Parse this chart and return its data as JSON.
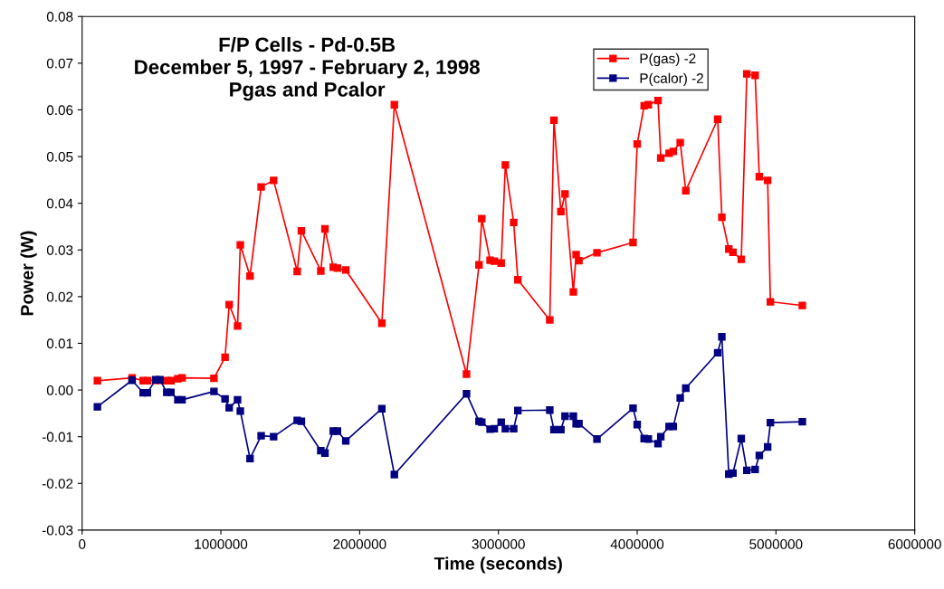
{
  "chart_data": {
    "type": "line",
    "title": "F/P Cells - Pd-0.5B\nDecember 5, 1997 - February 2, 1998\nPgas and Pcalor",
    "xlabel": "Time (seconds)",
    "ylabel": "Power (W)",
    "x": [
      110000,
      360000,
      440000,
      470000,
      530000,
      560000,
      610000,
      640000,
      690000,
      720000,
      950000,
      1030000,
      1060000,
      1120000,
      1140000,
      1210000,
      1290000,
      1380000,
      1550000,
      1580000,
      1720000,
      1750000,
      1810000,
      1840000,
      1900000,
      2160000,
      2250000,
      2770000,
      2860000,
      2880000,
      2940000,
      2970000,
      3020000,
      3050000,
      3110000,
      3140000,
      3370000,
      3400000,
      3450000,
      3480000,
      3540000,
      3560000,
      3580000,
      3710000,
      3970000,
      4000000,
      4050000,
      4080000,
      4150000,
      4170000,
      4230000,
      4260000,
      4310000,
      4350000,
      4580000,
      4610000,
      4660000,
      4690000,
      4750000,
      4790000,
      4850000,
      4880000,
      4940000,
      4960000,
      5190000
    ],
    "series": [
      {
        "name": "P(gas) -2",
        "color": "#ff0000",
        "values": [
          0.002,
          0.0026,
          0.002,
          0.002,
          0.0021,
          0.0021,
          0.002,
          0.002,
          0.0024,
          0.0026,
          0.0025,
          0.007,
          0.0183,
          0.0137,
          0.0311,
          0.0244,
          0.0435,
          0.0449,
          0.0254,
          0.0341,
          0.0255,
          0.0345,
          0.0263,
          0.0261,
          0.0257,
          0.0143,
          0.0611,
          0.0034,
          0.0268,
          0.0367,
          0.0278,
          0.0276,
          0.0272,
          0.0482,
          0.0359,
          0.0236,
          0.015,
          0.0578,
          0.0382,
          0.042,
          0.021,
          0.029,
          0.0277,
          0.0294,
          0.0316,
          0.0527,
          0.0609,
          0.0611,
          0.062,
          0.0497,
          0.0507,
          0.0511,
          0.053,
          0.0427,
          0.058,
          0.037,
          0.0302,
          0.0295,
          0.028,
          0.0677,
          0.0674,
          0.0457,
          0.0449,
          0.0189,
          0.0181
        ]
      },
      {
        "name": "P(calor) -2",
        "color": "#000080",
        "values": [
          -0.0036,
          0.0021,
          -0.0006,
          -0.0006,
          0.0022,
          0.0022,
          -0.0005,
          -0.0005,
          -0.0021,
          -0.0021,
          -0.0003,
          -0.0019,
          -0.0038,
          -0.0021,
          -0.0045,
          -0.0147,
          -0.0098,
          -0.01,
          -0.0065,
          -0.0067,
          -0.013,
          -0.0135,
          -0.0088,
          -0.0088,
          -0.0109,
          -0.004,
          -0.0181,
          -0.0008,
          -0.0067,
          -0.0069,
          -0.0084,
          -0.0083,
          -0.0069,
          -0.0083,
          -0.0083,
          -0.0044,
          -0.0043,
          -0.0085,
          -0.0085,
          -0.0056,
          -0.0056,
          -0.0072,
          -0.0072,
          -0.0105,
          -0.0039,
          -0.0074,
          -0.0104,
          -0.0105,
          -0.0115,
          -0.01,
          -0.0078,
          -0.0078,
          -0.0017,
          0.0004,
          0.008,
          0.0114,
          -0.018,
          -0.0178,
          -0.0104,
          -0.0172,
          -0.017,
          -0.014,
          -0.0122,
          -0.007,
          -0.0068
        ]
      }
    ],
    "xlim": [
      0,
      6000000
    ],
    "xticks": [
      0,
      1000000,
      2000000,
      3000000,
      4000000,
      5000000,
      6000000
    ],
    "ylim": [
      -0.03,
      0.08
    ],
    "yticks": [
      {
        "value": -0.03,
        "label": "-0.03"
      },
      {
        "value": -0.02,
        "label": "-0.02"
      },
      {
        "value": -0.01,
        "label": "-0.01"
      },
      {
        "value": 0,
        "label": "0.00"
      },
      {
        "value": 0.01,
        "label": "0.01"
      },
      {
        "value": 0.02,
        "label": "0.02"
      },
      {
        "value": 0.03,
        "label": "0.03"
      },
      {
        "value": 0.04,
        "label": "0.04"
      },
      {
        "value": 0.05,
        "label": "0.05"
      },
      {
        "value": 0.06,
        "label": "0.06"
      },
      {
        "value": 0.07,
        "label": "0.07"
      },
      {
        "value": 0.08,
        "label": "0.08"
      }
    ],
    "grid": false,
    "legend": "top right",
    "marker": "square",
    "line_style": "solid"
  }
}
